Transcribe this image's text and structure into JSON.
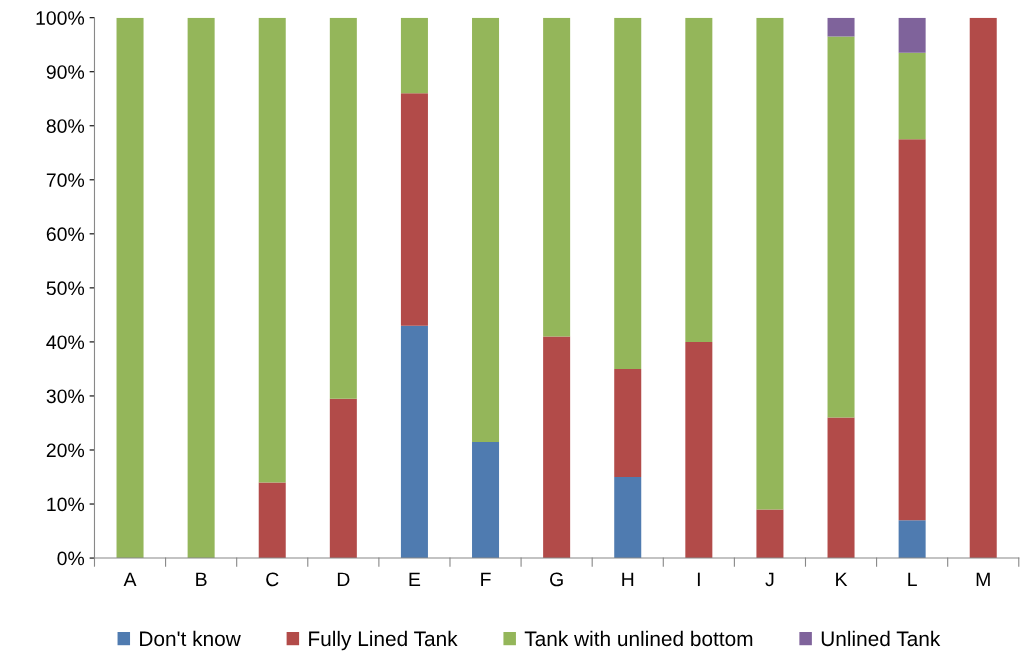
{
  "chart_data": {
    "type": "bar",
    "stacked": true,
    "categories": [
      "A",
      "B",
      "C",
      "D",
      "E",
      "F",
      "G",
      "H",
      "I",
      "J",
      "K",
      "L",
      "M"
    ],
    "series": [
      {
        "name": "Don't know",
        "color": "#4f7bb0",
        "values": [
          0,
          0,
          0,
          0,
          43,
          21.5,
          0,
          15,
          0,
          0,
          0,
          7,
          0
        ]
      },
      {
        "name": "Fully Lined Tank",
        "color": "#b24b49",
        "values": [
          0,
          0,
          14,
          29.5,
          43,
          0,
          41,
          20,
          40,
          9,
          26,
          70.5,
          100
        ]
      },
      {
        "name": "Tank with unlined bottom",
        "color": "#94b65a",
        "values": [
          100,
          100,
          86,
          70.5,
          14,
          78.5,
          59,
          65,
          60,
          91,
          70.5,
          16,
          0
        ]
      },
      {
        "name": "Unlined Tank",
        "color": "#7f639b",
        "values": [
          0,
          0,
          0,
          0,
          0,
          0,
          0,
          0,
          0,
          0,
          3.5,
          6.5,
          0
        ]
      }
    ],
    "ylim": [
      0,
      100
    ],
    "yticks": [
      {
        "value": 0,
        "label": "0%"
      },
      {
        "value": 10,
        "label": "10%"
      },
      {
        "value": 20,
        "label": "20%"
      },
      {
        "value": 30,
        "label": "30%"
      },
      {
        "value": 40,
        "label": "40%"
      },
      {
        "value": 50,
        "label": "50%"
      },
      {
        "value": 60,
        "label": "60%"
      },
      {
        "value": 70,
        "label": "70%"
      },
      {
        "value": 80,
        "label": "80%"
      },
      {
        "value": 90,
        "label": "90%"
      },
      {
        "value": 100,
        "label": "100%"
      }
    ],
    "grid": false,
    "legend": "bottom"
  }
}
